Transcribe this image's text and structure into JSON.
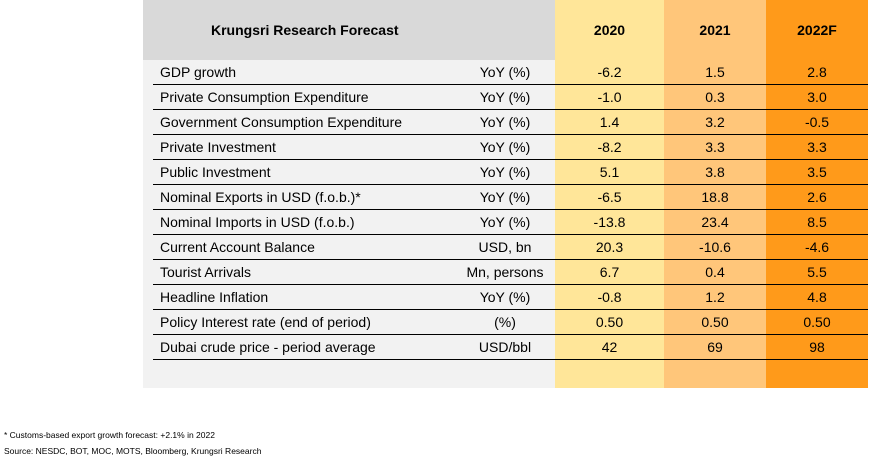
{
  "table": {
    "title": "Krungsri Research Forecast",
    "years": [
      "2020",
      "2021",
      "2022F"
    ],
    "rows": [
      {
        "label": "GDP growth",
        "unit": "YoY (%)",
        "values": [
          "-6.2",
          "1.5",
          "2.8"
        ]
      },
      {
        "label": "Private Consumption Expenditure",
        "unit": "YoY (%)",
        "values": [
          "-1.0",
          "0.3",
          "3.0"
        ]
      },
      {
        "label": "Government Consumption Expenditure",
        "unit": "YoY (%)",
        "values": [
          "1.4",
          "3.2",
          "-0.5"
        ]
      },
      {
        "label": "Private Investment",
        "unit": "YoY (%)",
        "values": [
          "-8.2",
          "3.3",
          "3.3"
        ]
      },
      {
        "label": "Public Investment",
        "unit": "YoY (%)",
        "values": [
          "5.1",
          "3.8",
          "3.5"
        ]
      },
      {
        "label": "Nominal Exports in USD (f.o.b.)*",
        "unit": "YoY (%)",
        "values": [
          "-6.5",
          "18.8",
          "2.6"
        ]
      },
      {
        "label": "Nominal Imports in USD (f.o.b.)",
        "unit": "YoY (%)",
        "values": [
          "-13.8",
          "23.4",
          "8.5"
        ]
      },
      {
        "label": "Current Account Balance",
        "unit": "USD, bn",
        "values": [
          "20.3",
          "-10.6",
          "-4.6"
        ]
      },
      {
        "label": "Tourist Arrivals",
        "unit": "Mn, persons",
        "values": [
          "6.7",
          "0.4",
          "5.5"
        ]
      },
      {
        "label": "Headline Inflation",
        "unit": "YoY (%)",
        "values": [
          "-0.8",
          "1.2",
          "4.8"
        ]
      },
      {
        "label": "Policy Interest rate (end of period)",
        "unit": "(%)",
        "values": [
          "0.50",
          "0.50",
          "0.50"
        ]
      },
      {
        "label": "Dubai crude price - period average",
        "unit": "USD/bbl",
        "values": [
          "42",
          "69",
          "98"
        ]
      }
    ]
  },
  "footnotes": {
    "note": "* Customs-based export growth forecast: +2.1% in 2022",
    "source": "Source: NESDC, BOT, MOC, MOTS, Bloomberg, Krungsri Research"
  },
  "colors": {
    "header_label_bg": "#d9d9d9",
    "col_2020": "#ffe699",
    "col_2021": "#ffc67a",
    "col_2022F": "#ff9a1a"
  }
}
